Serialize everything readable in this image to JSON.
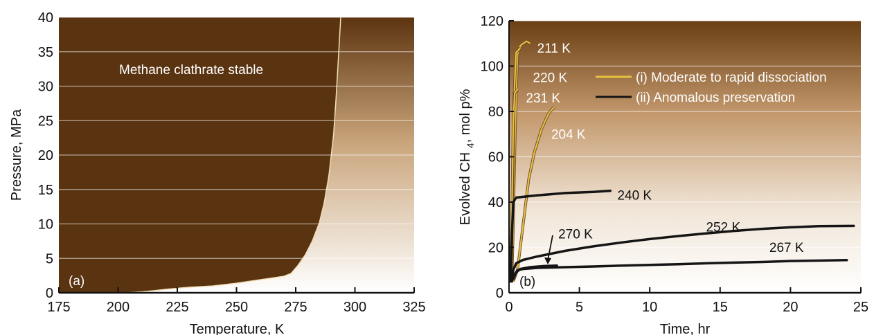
{
  "chart_data": [
    {
      "type": "area",
      "panel_label": "(a)",
      "xlabel": "Temperature, K",
      "ylabel": "Pressure, MPa",
      "xlim": [
        175,
        325
      ],
      "ylim": [
        0,
        40
      ],
      "xticks": [
        "175",
        "200",
        "225",
        "250",
        "275",
        "300",
        "325"
      ],
      "yticks": [
        "0",
        "5",
        "10",
        "15",
        "20",
        "25",
        "30",
        "35",
        "40"
      ],
      "grid": "horizontal",
      "region_label": "Methane clathrate stable",
      "boundary": {
        "x": [
          175,
          200,
          205,
          210,
          215,
          220,
          230,
          240,
          250,
          260,
          270,
          273,
          276,
          279,
          282,
          285,
          287,
          289,
          291,
          292,
          293,
          294
        ],
        "y": [
          0,
          0,
          0.05,
          0.15,
          0.3,
          0.5,
          0.8,
          1.0,
          1.4,
          1.9,
          2.4,
          2.8,
          4.0,
          5.5,
          7.5,
          10.2,
          13,
          17,
          23,
          28,
          34,
          40
        ]
      }
    },
    {
      "type": "line",
      "panel_label": "(b)",
      "xlabel": "Time, hr",
      "ylabel": "Evolved CH4, mol p%",
      "xlim": [
        0,
        25
      ],
      "ylim": [
        0,
        120
      ],
      "xticks": [
        "0",
        "5",
        "10",
        "15",
        "20",
        "25"
      ],
      "yticks": [
        "0",
        "20",
        "40",
        "60",
        "80",
        "100",
        "120"
      ],
      "grid": "horizontal",
      "legend": [
        {
          "label": "(i) Moderate to rapid dissociation",
          "color": "#e8c040"
        },
        {
          "label": "(ii) Anomalous preservation",
          "color": "#151515"
        }
      ],
      "series": [
        {
          "name": "211 K",
          "group": "i",
          "x": [
            0.2,
            0.3,
            0.45,
            0.6,
            0.8,
            1.0,
            1.25,
            1.5
          ],
          "y": [
            6,
            30,
            75,
            105,
            109,
            110,
            111,
            110
          ]
        },
        {
          "name": "220 K",
          "group": "i",
          "x": [
            0.15,
            0.25,
            0.35,
            0.5,
            0.65,
            0.8
          ],
          "y": [
            6,
            40,
            85,
            106,
            107,
            108
          ]
        },
        {
          "name": "231 K",
          "group": "i",
          "x": [
            0.1,
            0.2,
            0.3,
            0.4,
            0.5,
            0.65
          ],
          "y": [
            5,
            35,
            75,
            88,
            89,
            90
          ]
        },
        {
          "name": "204 K",
          "group": "i",
          "x": [
            0.3,
            0.6,
            1.0,
            1.4,
            1.8,
            2.3,
            2.8,
            3.2
          ],
          "y": [
            5,
            10,
            30,
            50,
            62,
            72,
            79,
            82
          ]
        },
        {
          "name": "240 K",
          "group": "ii",
          "x": [
            0.1,
            0.2,
            0.3,
            0.5,
            2,
            4,
            6,
            7.2
          ],
          "y": [
            5,
            25,
            40,
            42,
            43,
            44,
            44.5,
            45
          ]
        },
        {
          "name": "252 K",
          "group": "ii",
          "x": [
            0.2,
            0.3,
            0.5,
            1,
            2,
            4,
            6,
            8,
            10,
            12,
            14,
            16,
            18,
            20,
            22,
            24.5
          ],
          "y": [
            5,
            10,
            13,
            14.5,
            16,
            18.5,
            20.5,
            22.2,
            23.7,
            25,
            26.2,
            27.3,
            28.2,
            28.9,
            29.4,
            29.5
          ]
        },
        {
          "name": "267 K",
          "group": "ii",
          "x": [
            0.2,
            0.4,
            0.6,
            1,
            2,
            4,
            6,
            8,
            10,
            12,
            14,
            16,
            18,
            20,
            22,
            24
          ],
          "y": [
            5,
            8,
            10,
            10.5,
            11,
            11.3,
            11.6,
            12,
            12.3,
            12.6,
            13,
            13.3,
            13.6,
            14,
            14.2,
            14.4
          ]
        },
        {
          "name": "270 K",
          "group": "ii",
          "x": [
            0.3,
            0.5,
            0.8,
            1.5,
            2.5,
            3.4
          ],
          "y": [
            6,
            9,
            10.5,
            11.3,
            11.8,
            12
          ]
        }
      ],
      "annotations": [
        {
          "text": "211 K",
          "x": 2.0,
          "y": 106
        },
        {
          "text": "220 K",
          "x": 1.7,
          "y": 93
        },
        {
          "text": "231 K",
          "x": 1.2,
          "y": 84
        },
        {
          "text": "204 K",
          "x": 3.0,
          "y": 68
        },
        {
          "text": "240 K",
          "x": 7.7,
          "y": 41
        },
        {
          "text": "252 K",
          "x": 14.0,
          "y": 27
        },
        {
          "text": "267 K",
          "x": 18.5,
          "y": 18
        },
        {
          "text": "270 K",
          "x": 3.5,
          "y": 24
        }
      ]
    }
  ]
}
